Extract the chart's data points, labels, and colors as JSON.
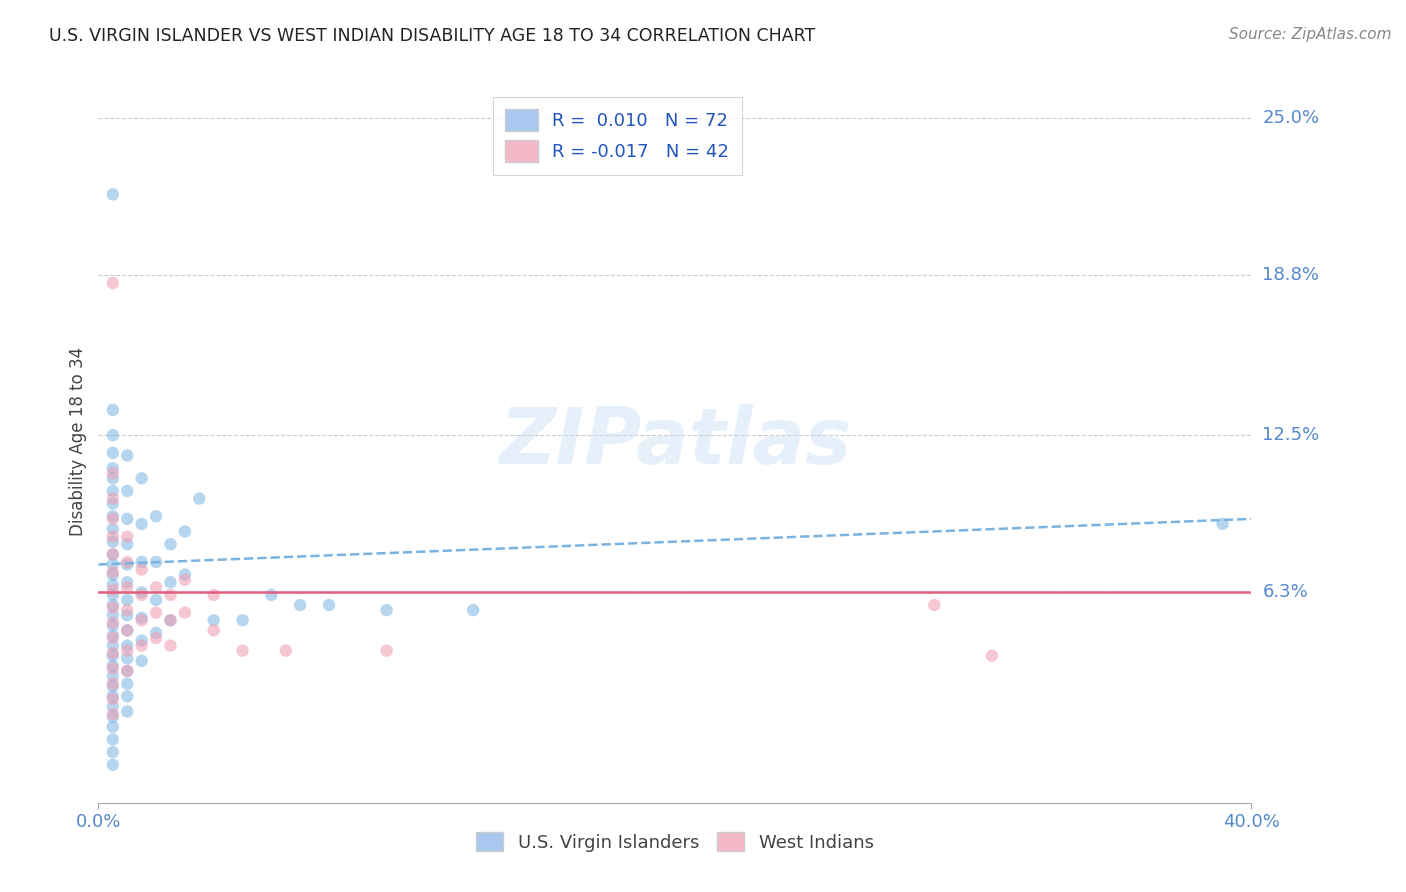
{
  "title": "U.S. VIRGIN ISLANDER VS WEST INDIAN DISABILITY AGE 18 TO 34 CORRELATION CHART",
  "source_text": "Source: ZipAtlas.com",
  "ylabel": "Disability Age 18 to 34",
  "xlim": [
    0.0,
    0.4
  ],
  "ylim": [
    -0.02,
    0.265
  ],
  "x_ticks": [
    0.0,
    0.4
  ],
  "x_tick_labels": [
    "0.0%",
    "40.0%"
  ],
  "y_tick_labels": [
    "25.0%",
    "18.8%",
    "12.5%",
    "6.3%"
  ],
  "y_tick_vals": [
    0.25,
    0.188,
    0.125,
    0.063
  ],
  "legend_entries": [
    {
      "label": "R =  0.010   N = 72",
      "color": "#a8c8f0"
    },
    {
      "label": "R = -0.017   N = 42",
      "color": "#f5b8c8"
    }
  ],
  "legend_bottom_labels": [
    "U.S. Virgin Islanders",
    "West Indians"
  ],
  "legend_bottom_colors": [
    "#a8c8f0",
    "#f5b8c8"
  ],
  "blue_scatter": [
    [
      0.005,
      0.22
    ],
    [
      0.005,
      0.135
    ],
    [
      0.005,
      0.125
    ],
    [
      0.005,
      0.118
    ],
    [
      0.005,
      0.112
    ],
    [
      0.005,
      0.108
    ],
    [
      0.005,
      0.103
    ],
    [
      0.005,
      0.098
    ],
    [
      0.005,
      0.093
    ],
    [
      0.005,
      0.088
    ],
    [
      0.005,
      0.083
    ],
    [
      0.005,
      0.078
    ],
    [
      0.005,
      0.074
    ],
    [
      0.005,
      0.07
    ],
    [
      0.005,
      0.066
    ],
    [
      0.005,
      0.062
    ],
    [
      0.005,
      0.058
    ],
    [
      0.005,
      0.054
    ],
    [
      0.005,
      0.05
    ],
    [
      0.005,
      0.046
    ],
    [
      0.005,
      0.042
    ],
    [
      0.005,
      0.038
    ],
    [
      0.005,
      0.034
    ],
    [
      0.005,
      0.03
    ],
    [
      0.005,
      0.026
    ],
    [
      0.005,
      0.022
    ],
    [
      0.005,
      0.018
    ],
    [
      0.005,
      0.014
    ],
    [
      0.005,
      0.01
    ],
    [
      0.005,
      0.005
    ],
    [
      0.005,
      0.0
    ],
    [
      0.005,
      -0.005
    ],
    [
      0.01,
      0.117
    ],
    [
      0.01,
      0.103
    ],
    [
      0.01,
      0.092
    ],
    [
      0.01,
      0.082
    ],
    [
      0.01,
      0.074
    ],
    [
      0.01,
      0.067
    ],
    [
      0.01,
      0.06
    ],
    [
      0.01,
      0.054
    ],
    [
      0.01,
      0.048
    ],
    [
      0.01,
      0.042
    ],
    [
      0.01,
      0.037
    ],
    [
      0.01,
      0.032
    ],
    [
      0.01,
      0.027
    ],
    [
      0.01,
      0.022
    ],
    [
      0.01,
      0.016
    ],
    [
      0.015,
      0.108
    ],
    [
      0.015,
      0.09
    ],
    [
      0.015,
      0.075
    ],
    [
      0.015,
      0.063
    ],
    [
      0.015,
      0.053
    ],
    [
      0.015,
      0.044
    ],
    [
      0.015,
      0.036
    ],
    [
      0.02,
      0.093
    ],
    [
      0.02,
      0.075
    ],
    [
      0.02,
      0.06
    ],
    [
      0.02,
      0.047
    ],
    [
      0.025,
      0.082
    ],
    [
      0.025,
      0.067
    ],
    [
      0.025,
      0.052
    ],
    [
      0.03,
      0.087
    ],
    [
      0.03,
      0.07
    ],
    [
      0.035,
      0.1
    ],
    [
      0.04,
      0.052
    ],
    [
      0.05,
      0.052
    ],
    [
      0.06,
      0.062
    ],
    [
      0.07,
      0.058
    ],
    [
      0.08,
      0.058
    ],
    [
      0.1,
      0.056
    ],
    [
      0.13,
      0.056
    ],
    [
      0.39,
      0.09
    ]
  ],
  "pink_scatter": [
    [
      0.005,
      0.185
    ],
    [
      0.005,
      0.11
    ],
    [
      0.005,
      0.1
    ],
    [
      0.005,
      0.092
    ],
    [
      0.005,
      0.085
    ],
    [
      0.005,
      0.078
    ],
    [
      0.005,
      0.071
    ],
    [
      0.005,
      0.064
    ],
    [
      0.005,
      0.057
    ],
    [
      0.005,
      0.051
    ],
    [
      0.005,
      0.045
    ],
    [
      0.005,
      0.039
    ],
    [
      0.005,
      0.033
    ],
    [
      0.005,
      0.027
    ],
    [
      0.005,
      0.021
    ],
    [
      0.005,
      0.015
    ],
    [
      0.01,
      0.085
    ],
    [
      0.01,
      0.075
    ],
    [
      0.01,
      0.065
    ],
    [
      0.01,
      0.056
    ],
    [
      0.01,
      0.048
    ],
    [
      0.01,
      0.04
    ],
    [
      0.01,
      0.032
    ],
    [
      0.015,
      0.072
    ],
    [
      0.015,
      0.062
    ],
    [
      0.015,
      0.052
    ],
    [
      0.015,
      0.042
    ],
    [
      0.02,
      0.065
    ],
    [
      0.02,
      0.055
    ],
    [
      0.02,
      0.045
    ],
    [
      0.025,
      0.062
    ],
    [
      0.025,
      0.052
    ],
    [
      0.025,
      0.042
    ],
    [
      0.03,
      0.068
    ],
    [
      0.03,
      0.055
    ],
    [
      0.04,
      0.062
    ],
    [
      0.04,
      0.048
    ],
    [
      0.05,
      0.04
    ],
    [
      0.065,
      0.04
    ],
    [
      0.1,
      0.04
    ],
    [
      0.29,
      0.058
    ],
    [
      0.31,
      0.038
    ]
  ],
  "blue_line": [
    [
      0.0,
      0.074
    ],
    [
      0.4,
      0.092
    ]
  ],
  "pink_line": [
    [
      0.0,
      0.063
    ],
    [
      0.4,
      0.063
    ]
  ],
  "watermark": "ZIPatlas",
  "scatter_alpha": 0.55,
  "scatter_size": 80,
  "blue_color": "#7ab3e0",
  "pink_color": "#f09ab0",
  "blue_line_color": "#7ab3e0",
  "pink_line_color": "#e06080",
  "grid_color": "#cccccc",
  "background_color": "#ffffff"
}
